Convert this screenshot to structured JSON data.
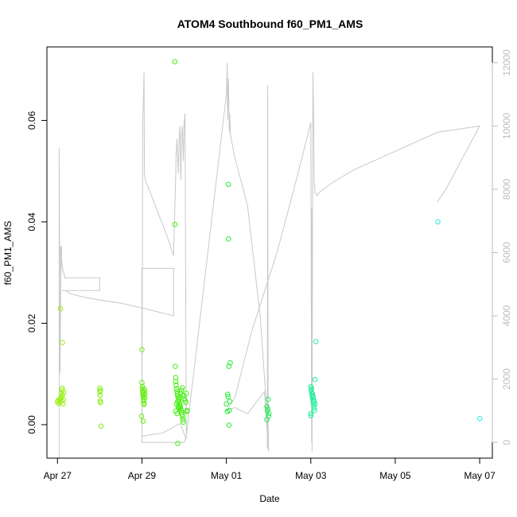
{
  "chart_data": {
    "type": "scatter",
    "title": "ATOM4 Southbound f60_PM1_AMS",
    "xlabel": "Date",
    "ylabel": "f60_PM1_AMS",
    "x_ticks": [
      {
        "label": "Apr 27",
        "day": 0
      },
      {
        "label": "Apr 29",
        "day": 2
      },
      {
        "label": "May 01",
        "day": 4
      },
      {
        "label": "May 03",
        "day": 6
      },
      {
        "label": "May 05",
        "day": 8
      },
      {
        "label": "May 07",
        "day": 10
      }
    ],
    "y_ticks": [
      {
        "label": "0.00",
        "value": 0.0
      },
      {
        "label": "0.02",
        "value": 0.02
      },
      {
        "label": "0.04",
        "value": 0.04
      },
      {
        "label": "0.06",
        "value": 0.06
      }
    ],
    "y2_ticks": [
      {
        "label": "0",
        "value": 0
      },
      {
        "label": "2000",
        "value": 2000
      },
      {
        "label": "4000",
        "value": 4000
      },
      {
        "label": "6000",
        "value": 6000
      },
      {
        "label": "8000",
        "value": 8000
      },
      {
        "label": "10000",
        "value": 10000
      },
      {
        "label": "12000",
        "value": 12000
      }
    ],
    "xlim": [
      -0.25,
      10.3
    ],
    "ylim": [
      -0.0066,
      0.0745
    ],
    "y2lim": [
      -500,
      12500
    ],
    "grid": false,
    "point_series": [
      {
        "color": "#9AF018",
        "points": [
          [
            0.0,
            0.0045
          ],
          [
            0.02,
            0.0048
          ],
          [
            0.03,
            0.0042
          ],
          [
            0.05,
            0.005
          ],
          [
            0.06,
            0.0044
          ],
          [
            0.07,
            0.0229
          ],
          [
            0.08,
            0.0052
          ],
          [
            0.09,
            0.0055
          ],
          [
            0.1,
            0.0047
          ],
          [
            0.1,
            0.0062
          ],
          [
            0.11,
            0.0068
          ],
          [
            0.11,
            0.0072
          ],
          [
            0.12,
            0.0058
          ],
          [
            0.12,
            0.0162
          ],
          [
            0.13,
            0.0041
          ],
          [
            0.14,
            0.0049
          ],
          [
            0.15,
            0.0064
          ]
        ]
      },
      {
        "color": "#80EE10",
        "points": [
          [
            1.0,
            0.0072
          ],
          [
            1.0,
            0.0065
          ],
          [
            1.01,
            0.0058
          ],
          [
            1.01,
            0.0047
          ],
          [
            1.02,
            0.0044
          ],
          [
            1.02,
            0.0068
          ],
          [
            1.03,
            -0.0003
          ]
        ]
      },
      {
        "color": "#66EE10",
        "points": [
          [
            2.0,
            0.0148
          ],
          [
            2.0,
            0.0083
          ],
          [
            2.01,
            0.0075
          ],
          [
            2.01,
            0.0071
          ],
          [
            2.02,
            0.0066
          ],
          [
            2.02,
            0.0062
          ],
          [
            2.03,
            0.0058
          ],
          [
            2.03,
            0.0055
          ],
          [
            2.04,
            0.005
          ],
          [
            2.04,
            0.0046
          ],
          [
            2.05,
            0.0042
          ],
          [
            2.05,
            0.004
          ],
          [
            2.06,
            0.0065
          ],
          [
            2.06,
            0.007
          ],
          [
            2.07,
            0.006
          ],
          [
            2.07,
            0.0053
          ],
          [
            1.99,
            0.0017
          ],
          [
            2.03,
            0.0007
          ]
        ]
      },
      {
        "color": "#44EE10",
        "points": [
          [
            2.78,
            0.0716
          ],
          [
            2.78,
            0.0395
          ],
          [
            2.79,
            0.0115
          ],
          [
            2.8,
            0.0093
          ],
          [
            2.8,
            0.0085
          ],
          [
            2.81,
            0.0078
          ],
          [
            2.82,
            0.0071
          ],
          [
            2.83,
            0.0066
          ],
          [
            2.84,
            0.0061
          ],
          [
            2.85,
            0.0057
          ],
          [
            2.86,
            0.0053
          ],
          [
            2.87,
            0.005
          ],
          [
            2.88,
            0.0046
          ],
          [
            2.89,
            0.0042
          ],
          [
            2.9,
            0.0039
          ],
          [
            2.91,
            0.0035
          ],
          [
            2.92,
            0.0031
          ],
          [
            2.93,
            0.0028
          ],
          [
            2.94,
            0.0024
          ],
          [
            2.95,
            0.002
          ],
          [
            2.96,
            0.0016
          ],
          [
            2.97,
            0.001
          ],
          [
            2.98,
            0.0005
          ],
          [
            2.82,
            0.004
          ],
          [
            2.84,
            0.0045
          ],
          [
            2.86,
            0.0036
          ],
          [
            2.88,
            0.0033
          ],
          [
            2.9,
            0.0055
          ],
          [
            2.92,
            0.0062
          ],
          [
            2.94,
            0.0068
          ],
          [
            2.96,
            0.0073
          ],
          [
            2.98,
            0.0058
          ],
          [
            3.0,
            0.0052
          ],
          [
            3.02,
            0.0048
          ],
          [
            3.04,
            0.0044
          ],
          [
            3.05,
            0.0062
          ],
          [
            3.06,
            0.0026
          ],
          [
            3.07,
            0.0028
          ],
          [
            2.85,
            -0.0037
          ],
          [
            2.8,
            0.0027
          ],
          [
            2.83,
            0.0022
          ]
        ]
      },
      {
        "color": "#22EE30",
        "points": [
          [
            4.0,
            0.0041
          ],
          [
            4.02,
            0.0026
          ],
          [
            4.03,
            0.006
          ],
          [
            4.04,
            0.0055
          ],
          [
            4.05,
            0.0474
          ],
          [
            4.05,
            0.0366
          ],
          [
            4.06,
            0.0115
          ],
          [
            4.07,
            0.0028
          ],
          [
            4.08,
            0.0046
          ],
          [
            4.09,
            0.0122
          ],
          [
            4.06,
            -0.0001
          ]
        ]
      },
      {
        "color": "#22EE55",
        "points": [
          [
            4.96,
            0.0036
          ],
          [
            4.97,
            0.0027
          ],
          [
            4.98,
            0.0031
          ],
          [
            4.99,
            0.005
          ],
          [
            5.0,
            0.0017
          ],
          [
            5.01,
            0.0022
          ],
          [
            4.96,
            0.001
          ]
        ]
      },
      {
        "color": "#22EE99",
        "points": [
          [
            6.0,
            0.0075
          ],
          [
            6.01,
            0.0068
          ],
          [
            6.02,
            0.0063
          ],
          [
            6.03,
            0.0058
          ],
          [
            6.04,
            0.0053
          ],
          [
            6.05,
            0.0048
          ],
          [
            6.06,
            0.0043
          ],
          [
            6.07,
            0.0038
          ],
          [
            6.08,
            0.0033
          ],
          [
            6.09,
            0.0028
          ],
          [
            6.1,
            0.0089
          ],
          [
            6.0,
            0.0022
          ],
          [
            6.02,
            0.0072
          ],
          [
            6.04,
            0.0061
          ],
          [
            6.06,
            0.0055
          ],
          [
            6.08,
            0.0047
          ],
          [
            6.1,
            0.0041
          ],
          [
            6.12,
            0.0164
          ],
          [
            6.0,
            0.0018
          ]
        ]
      },
      {
        "color": "#22EEDD",
        "points": [
          [
            9.01,
            0.04
          ],
          [
            10.0,
            0.0012
          ]
        ]
      }
    ],
    "line_series": {
      "axis": "right",
      "color": "#c8c8c8",
      "points": [
        [
          0.04,
          -500
        ],
        [
          0.04,
          9300
        ],
        [
          0.06,
          2200
        ],
        [
          0.08,
          5300
        ],
        [
          0.07,
          6200
        ],
        [
          0.08,
          5200
        ],
        [
          0.1,
          6100
        ],
        [
          0.09,
          6200
        ],
        [
          0.08,
          6000
        ],
        [
          0.12,
          5500
        ],
        [
          0.18,
          5200
        ],
        [
          0.5,
          5200
        ],
        [
          1.0,
          5200
        ],
        [
          1.0,
          4800
        ],
        [
          0.1,
          4800
        ],
        [
          0.2,
          4800
        ],
        [
          0.3,
          4700
        ],
        [
          0.6,
          4600
        ],
        [
          1.0,
          4500
        ],
        [
          1.5,
          4400
        ],
        [
          2.0,
          4250
        ],
        [
          2.3,
          4150
        ],
        [
          2.75,
          4000
        ],
        [
          2.75,
          5500
        ],
        [
          2.0,
          5500
        ],
        [
          2.0,
          0
        ],
        [
          2.02,
          10200
        ],
        [
          2.03,
          10500
        ],
        [
          2.05,
          11700
        ],
        [
          2.06,
          8500
        ],
        [
          2.08,
          8300
        ],
        [
          2.6,
          6500
        ],
        [
          2.75,
          5900
        ],
        [
          2.8,
          8400
        ],
        [
          2.81,
          9100
        ],
        [
          2.83,
          9600
        ],
        [
          2.86,
          8500
        ],
        [
          2.88,
          9500
        ],
        [
          2.9,
          10000
        ],
        [
          2.92,
          8300
        ],
        [
          2.94,
          9700
        ],
        [
          2.96,
          10000
        ],
        [
          2.98,
          8900
        ],
        [
          3.0,
          10100
        ],
        [
          3.02,
          10400
        ],
        [
          3.05,
          300
        ],
        [
          3.05,
          100
        ],
        [
          2.9,
          600
        ],
        [
          2.5,
          300
        ],
        [
          2.0,
          200
        ],
        [
          2.0,
          0
        ],
        [
          3.0,
          0
        ],
        [
          3.05,
          200
        ],
        [
          4.0,
          11000
        ],
        [
          4.02,
          12000
        ],
        [
          4.03,
          10200
        ],
        [
          4.05,
          11500
        ],
        [
          4.06,
          10500
        ],
        [
          4.07,
          9800
        ],
        [
          4.08,
          10400
        ],
        [
          4.1,
          9700
        ],
        [
          4.2,
          9000
        ],
        [
          4.5,
          7500
        ],
        [
          4.8,
          4000
        ],
        [
          5.0,
          200
        ],
        [
          4.97,
          -200
        ],
        [
          4.98,
          11300
        ],
        [
          4.99,
          400
        ],
        [
          5.0,
          -300
        ],
        [
          4.9,
          1600
        ],
        [
          4.5,
          900
        ],
        [
          4.2,
          1100
        ],
        [
          4.0,
          1000
        ],
        [
          4.2,
          1400
        ],
        [
          4.6,
          3500
        ],
        [
          5.2,
          6000
        ],
        [
          5.6,
          8000
        ],
        [
          6.0,
          10100
        ],
        [
          6.02,
          0
        ],
        [
          6.02,
          7400
        ],
        [
          6.03,
          -300
        ],
        [
          6.05,
          11700
        ],
        [
          6.06,
          11000
        ],
        [
          6.07,
          9800
        ],
        [
          6.08,
          8200
        ],
        [
          6.1,
          7900
        ],
        [
          6.15,
          7800
        ],
        [
          6.2,
          7900
        ],
        [
          6.5,
          8200
        ],
        [
          7.0,
          8600
        ],
        [
          8.0,
          9200
        ],
        [
          9.0,
          9800
        ],
        [
          10.0,
          10000
        ],
        [
          9.6,
          9000
        ],
        [
          9.2,
          8000
        ],
        [
          9.0,
          7600
        ]
      ]
    }
  }
}
